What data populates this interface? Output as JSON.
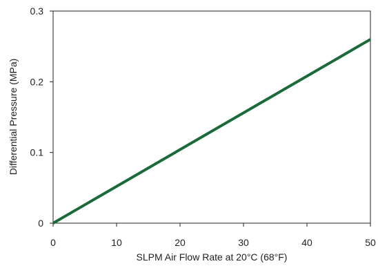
{
  "chart_data": {
    "type": "line",
    "title": "",
    "xlabel": "SLPM Air Flow Rate at 20°C (68°F)",
    "ylabel": "Differential Pressure (MPa)",
    "xlim": [
      0,
      50
    ],
    "ylim": [
      0,
      0.3
    ],
    "x_ticks": [
      0,
      10,
      20,
      30,
      40,
      50
    ],
    "x_tick_labels": [
      "0",
      "10",
      "20",
      "30",
      "40",
      "50"
    ],
    "y_ticks": [
      0,
      0.1,
      0.2,
      0.3
    ],
    "y_tick_labels": [
      "0",
      "0.1",
      "0.2",
      "0.3"
    ],
    "grid": false,
    "legend": "none",
    "series": [
      {
        "color": "#1b6b3a",
        "x": [
          0,
          50
        ],
        "y": [
          0,
          0.26
        ]
      }
    ]
  }
}
